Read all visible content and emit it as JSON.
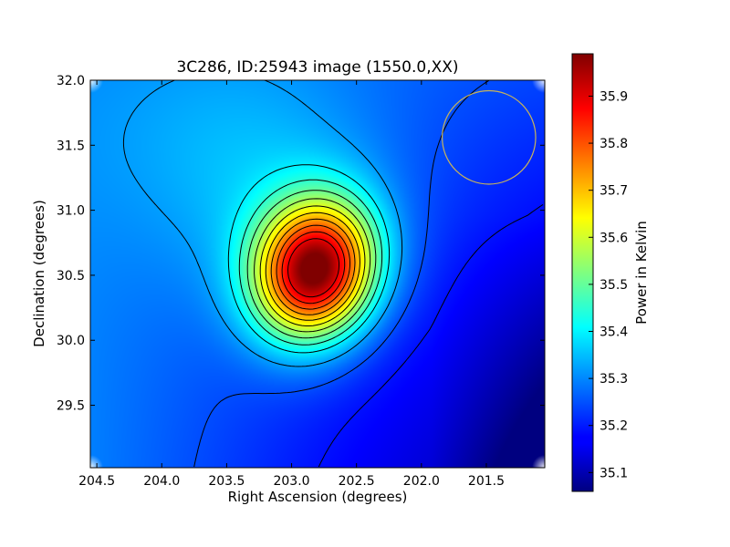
{
  "chart_data": {
    "type": "heatmap",
    "title": "3C286, ID:25943 image (1550.0,XX)",
    "xlabel": "Right Ascension (degrees)",
    "ylabel": "Declination (degrees)",
    "xlim": [
      204.55,
      201.05
    ],
    "ylim": [
      29.02,
      32.0
    ],
    "x_ticks": [
      {
        "value": 204.5,
        "label": "204.5"
      },
      {
        "value": 204.0,
        "label": "204.0"
      },
      {
        "value": 203.5,
        "label": "203.5"
      },
      {
        "value": 203.0,
        "label": "203.0"
      },
      {
        "value": 202.5,
        "label": "202.5"
      },
      {
        "value": 202.0,
        "label": "202.0"
      },
      {
        "value": 201.5,
        "label": "201.5"
      }
    ],
    "y_ticks": [
      {
        "value": 32.0,
        "label": "32.0"
      },
      {
        "value": 31.5,
        "label": "31.5"
      },
      {
        "value": 31.0,
        "label": "31.0"
      },
      {
        "value": 30.5,
        "label": "30.5"
      },
      {
        "value": 30.0,
        "label": "30.0"
      },
      {
        "value": 29.5,
        "label": "29.5"
      }
    ],
    "colormap": "jet",
    "colorbar": {
      "label": "Power in Kelvin",
      "range": [
        35.06,
        35.99
      ],
      "ticks": [
        {
          "value": 35.1,
          "label": "35.1"
        },
        {
          "value": 35.2,
          "label": "35.2"
        },
        {
          "value": 35.3,
          "label": "35.3"
        },
        {
          "value": 35.4,
          "label": "35.4"
        },
        {
          "value": 35.5,
          "label": "35.5"
        },
        {
          "value": 35.6,
          "label": "35.6"
        },
        {
          "value": 35.7,
          "label": "35.7"
        },
        {
          "value": 35.8,
          "label": "35.8"
        },
        {
          "value": 35.9,
          "label": "35.9"
        }
      ]
    },
    "peak": {
      "ra": 202.82,
      "dec": 30.52,
      "value": 35.99
    },
    "background_level": 35.22,
    "contours": "black contour lines around peak",
    "beam_circle": {
      "ra": 201.48,
      "dec": 31.56,
      "radius_deg": 0.36,
      "color": "#c8b45a"
    }
  }
}
